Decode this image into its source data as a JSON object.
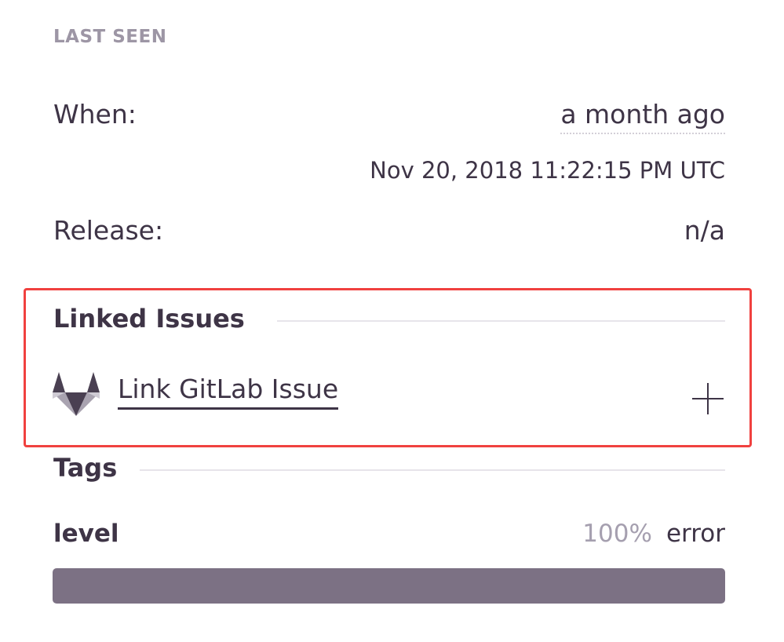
{
  "last_seen": {
    "section_label": "LAST SEEN",
    "when_label": "When:",
    "when_value": "a month ago",
    "timestamp": "Nov 20, 2018 11:22:15 PM UTC",
    "release_label": "Release:",
    "release_value": "n/a"
  },
  "linked_issues": {
    "heading": "Linked Issues",
    "link_label": "Link GitLab Issue",
    "icon": "gitlab-icon",
    "add_icon": "plus-icon",
    "highlight_color": "#f0413f"
  },
  "tags": {
    "heading": "Tags",
    "items": [
      {
        "key": "level",
        "percent_label": "100%",
        "value": "error",
        "percent": 100
      }
    ]
  }
}
